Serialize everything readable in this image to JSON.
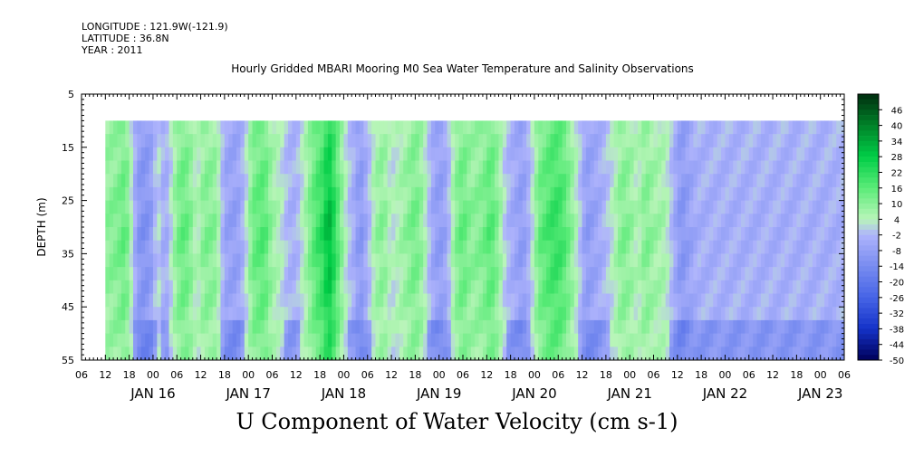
{
  "header": {
    "longitude": "LONGITUDE : 121.9W(-121.9)",
    "latitude": "LATITUDE : 36.8N",
    "year": "YEAR : 2011"
  },
  "chart_data": {
    "type": "heatmap",
    "title": "Hourly Gridded MBARI Mooring M0 Sea Water Temperature and Salinity Observations",
    "variable_label": "U Component of Water Velocity (cm s-1)",
    "ylabel": "DEPTH (m)",
    "ylim": [
      5,
      55
    ],
    "y_inverted": true,
    "y_ticks": [
      5,
      15,
      25,
      35,
      45,
      55
    ],
    "data_depth_range": [
      10,
      55
    ],
    "x_hour_ticks": [
      "06",
      "12",
      "18",
      "00",
      "06",
      "12",
      "18",
      "00",
      "06",
      "12",
      "18",
      "00",
      "06",
      "12",
      "18",
      "00",
      "06",
      "12",
      "18",
      "00",
      "06",
      "12",
      "18",
      "00",
      "06",
      "12",
      "18",
      "00",
      "06",
      "12",
      "18",
      "00",
      "06"
    ],
    "x_day_labels": [
      "JAN 16",
      "JAN 17",
      "JAN 18",
      "JAN 19",
      "JAN 20",
      "JAN 21",
      "JAN 22",
      "JAN 23"
    ],
    "data_start_hour_offset": 6,
    "colorbar": {
      "levels": [
        46,
        40,
        34,
        28,
        22,
        16,
        10,
        4,
        -2,
        -8,
        -14,
        -20,
        -26,
        -32,
        -38,
        -44,
        -50
      ],
      "min": -50,
      "max": 52
    },
    "column_profile": [
      [
        0,
        10
      ],
      [
        3,
        12
      ],
      [
        5,
        16
      ],
      [
        6,
        9
      ],
      [
        8,
        -10
      ],
      [
        10,
        -13
      ],
      [
        12,
        -8
      ],
      [
        13,
        3
      ],
      [
        15,
        -6
      ],
      [
        16,
        -2
      ],
      [
        18,
        12
      ],
      [
        20,
        16
      ],
      [
        22,
        9
      ],
      [
        23,
        3
      ],
      [
        25,
        12
      ],
      [
        28,
        10
      ],
      [
        30,
        -7
      ],
      [
        33,
        -9
      ],
      [
        35,
        -2
      ],
      [
        37,
        14
      ],
      [
        40,
        18
      ],
      [
        42,
        8
      ],
      [
        44,
        4
      ],
      [
        46,
        -3
      ],
      [
        48,
        -4
      ],
      [
        50,
        5
      ],
      [
        53,
        19
      ],
      [
        55,
        24
      ],
      [
        56,
        34
      ],
      [
        57,
        29
      ],
      [
        59,
        14
      ],
      [
        61,
        0
      ],
      [
        63,
        -6
      ],
      [
        64,
        -12
      ],
      [
        66,
        -4
      ],
      [
        68,
        8
      ],
      [
        70,
        11
      ],
      [
        72,
        2
      ],
      [
        74,
        6
      ],
      [
        76,
        10
      ],
      [
        78,
        14
      ],
      [
        80,
        8
      ],
      [
        82,
        -5
      ],
      [
        84,
        -10
      ],
      [
        86,
        -6
      ],
      [
        88,
        10
      ],
      [
        90,
        16
      ],
      [
        92,
        10
      ],
      [
        95,
        12
      ],
      [
        97,
        18
      ],
      [
        99,
        10
      ],
      [
        101,
        -2
      ],
      [
        103,
        -6
      ],
      [
        105,
        -10
      ],
      [
        107,
        -2
      ],
      [
        109,
        14
      ],
      [
        111,
        18
      ],
      [
        113,
        22
      ],
      [
        115,
        20
      ],
      [
        117,
        12
      ],
      [
        119,
        2
      ],
      [
        121,
        -10
      ],
      [
        124,
        -6
      ],
      [
        126,
        -2
      ],
      [
        128,
        4
      ],
      [
        130,
        12
      ],
      [
        132,
        10
      ],
      [
        134,
        4
      ],
      [
        136,
        12
      ],
      [
        138,
        8
      ],
      [
        141,
        6
      ],
      [
        143,
        -4
      ],
      [
        145,
        -12
      ],
      [
        147,
        -8
      ],
      [
        149,
        -4
      ]
    ]
  }
}
